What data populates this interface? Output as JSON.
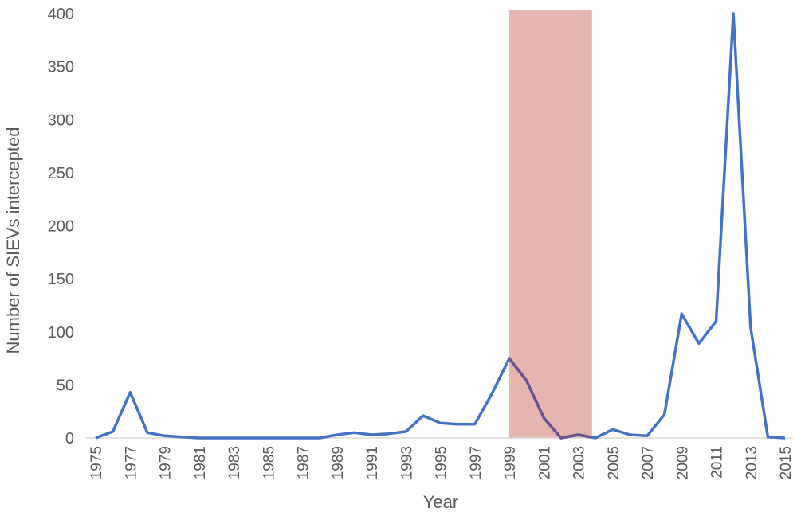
{
  "chart_data": {
    "type": "line",
    "title": "",
    "xlabel": "Year",
    "ylabel": "Number of SIEVs intercepted",
    "ylim": [
      0,
      400
    ],
    "yticks": [
      0,
      50,
      100,
      150,
      200,
      250,
      300,
      350,
      400
    ],
    "xlim": [
      1975,
      2015
    ],
    "xtick_labels": [
      "1975",
      "1977",
      "1979",
      "1981",
      "1983",
      "1985",
      "1987",
      "1989",
      "1991",
      "1993",
      "1995",
      "1997",
      "1999",
      "2001",
      "2003",
      "2005",
      "2007",
      "2009",
      "2011",
      "2013",
      "2015"
    ],
    "grid": false,
    "legend": null,
    "x": [
      1975,
      1976,
      1977,
      1978,
      1979,
      1980,
      1981,
      1982,
      1983,
      1984,
      1985,
      1986,
      1987,
      1988,
      1989,
      1990,
      1991,
      1992,
      1993,
      1994,
      1995,
      1996,
      1997,
      1998,
      1999,
      2000,
      2001,
      2002,
      2003,
      2004,
      2005,
      2006,
      2007,
      2008,
      2009,
      2010,
      2011,
      2012,
      2013,
      2014,
      2015
    ],
    "series": [
      {
        "name": "SIEVs intercepted",
        "color": "#4472C4",
        "values": [
          0,
          6,
          43,
          5,
          2,
          1,
          0,
          0,
          0,
          0,
          0,
          0,
          0,
          0,
          3,
          5,
          3,
          4,
          6,
          21,
          14,
          13,
          13,
          42,
          75,
          54,
          19,
          0,
          3,
          0,
          8,
          3,
          2,
          22,
          117,
          89,
          110,
          400,
          104,
          1,
          0
        ]
      }
    ],
    "annotations": [
      {
        "type": "shaded_region",
        "x_start": 1999,
        "x_end": 2003.8,
        "color": "#E5B5B0",
        "description": "highlighted period"
      }
    ]
  }
}
